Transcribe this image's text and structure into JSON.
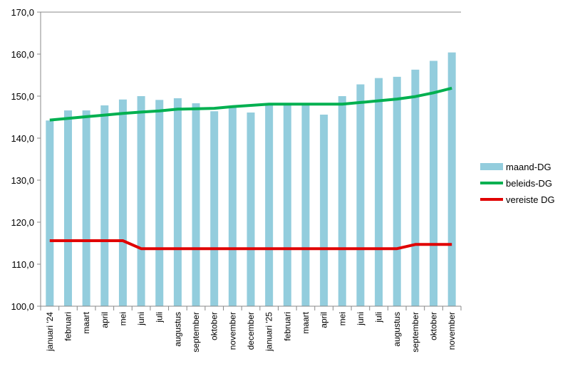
{
  "chart_data": {
    "type": "bar",
    "title": "",
    "xlabel": "",
    "ylabel": "",
    "ylim": [
      100,
      170
    ],
    "yticks": [
      "100,0",
      "110,0",
      "120,0",
      "130,0",
      "140,0",
      "150,0",
      "160,0",
      "170,0"
    ],
    "ytick_values": [
      100,
      110,
      120,
      130,
      140,
      150,
      160,
      170
    ],
    "grid": false,
    "legend_position": "right",
    "categories": [
      "januari '24",
      "februari",
      "maart",
      "april",
      "mei",
      "juni",
      "juli",
      "augustus",
      "september",
      "oktober",
      "november",
      "december",
      "januari '25",
      "februari",
      "maart",
      "april",
      "mei",
      "juni",
      "juli",
      "augustus",
      "september",
      "oktober",
      "november"
    ],
    "series": [
      {
        "name": "maand-DG",
        "kind": "bar",
        "color": "#93CDDD",
        "values": [
          144.2,
          146.6,
          146.6,
          147.8,
          149.2,
          150.0,
          149.1,
          149.5,
          148.3,
          146.4,
          147.7,
          146.1,
          148.1,
          148.1,
          148.1,
          145.6,
          150.0,
          152.8,
          154.3,
          154.6,
          156.3,
          158.4,
          160.4
        ]
      },
      {
        "name": "beleids-DG",
        "kind": "line",
        "color": "#00B050",
        "values": [
          144.3,
          144.7,
          145.1,
          145.5,
          145.9,
          146.2,
          146.5,
          146.9,
          147.0,
          147.1,
          147.5,
          147.8,
          148.1,
          148.1,
          148.1,
          148.1,
          148.1,
          148.5,
          148.9,
          149.3,
          149.9,
          150.8,
          151.9
        ]
      },
      {
        "name": "vereiste DG",
        "kind": "line",
        "color": "#E00000",
        "values": [
          115.6,
          115.6,
          115.6,
          115.6,
          115.6,
          113.7,
          113.7,
          113.7,
          113.7,
          113.7,
          113.7,
          113.7,
          113.7,
          113.7,
          113.7,
          113.7,
          113.7,
          113.7,
          113.7,
          113.7,
          114.7,
          114.7,
          114.7
        ]
      }
    ]
  }
}
